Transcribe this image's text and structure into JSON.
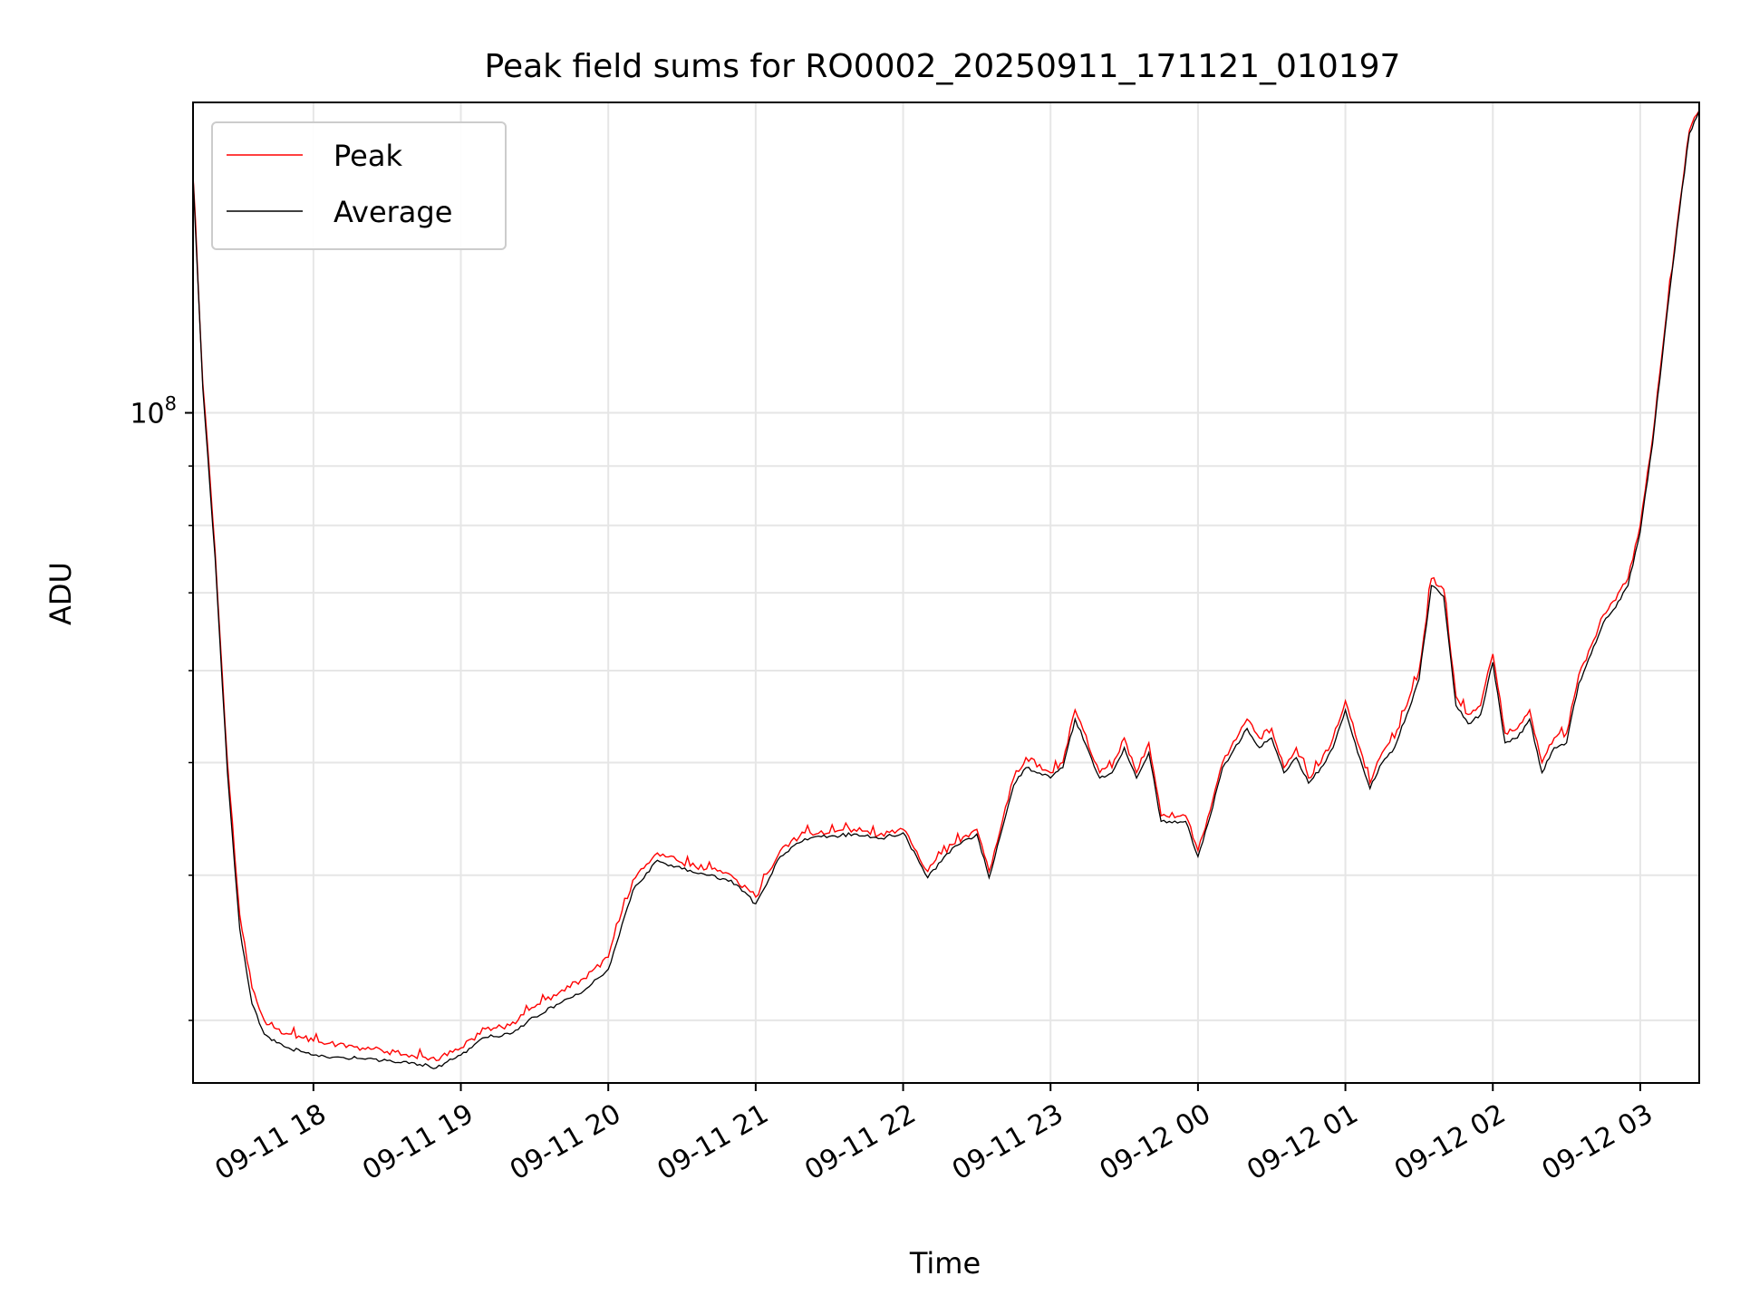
{
  "chart_data": {
    "type": "line",
    "title": "Peak field sums for RO0002_20250911_171121_010197",
    "xlabel": "Time",
    "ylabel": "ADU",
    "y_scale": "log",
    "ylim": [
      26500000,
      185000000
    ],
    "xlim": [
      "09-11 17:11",
      "09-12 03:24"
    ],
    "grid": true,
    "legend_position": "top-left",
    "x_ticks": [
      "09-11 18",
      "09-11 19",
      "09-11 20",
      "09-11 21",
      "09-11 22",
      "09-11 23",
      "09-12 00",
      "09-12 01",
      "09-12 02",
      "09-12 03"
    ],
    "y_ticks": [
      "10^8"
    ],
    "colors": {
      "peak": "#ff0000",
      "average": "#000000"
    },
    "series": [
      {
        "name": "Peak",
        "x": [
          "09-11 17:11",
          "09-11 17:15",
          "09-11 17:20",
          "09-11 17:25",
          "09-11 17:30",
          "09-11 17:35",
          "09-11 17:40",
          "09-11 17:45",
          "09-11 17:50",
          "09-11 17:55",
          "09-11 18:00",
          "09-11 18:10",
          "09-11 18:20",
          "09-11 18:30",
          "09-11 18:40",
          "09-11 18:50",
          "09-11 19:00",
          "09-11 19:10",
          "09-11 19:20",
          "09-11 19:30",
          "09-11 19:40",
          "09-11 19:50",
          "09-11 20:00",
          "09-11 20:10",
          "09-11 20:20",
          "09-11 20:30",
          "09-11 20:40",
          "09-11 20:50",
          "09-11 21:00",
          "09-11 21:10",
          "09-11 21:20",
          "09-11 21:30",
          "09-11 21:40",
          "09-11 21:50",
          "09-11 22:00",
          "09-11 22:10",
          "09-11 22:20",
          "09-11 22:30",
          "09-11 22:35",
          "09-11 22:45",
          "09-11 22:50",
          "09-11 23:00",
          "09-11 23:05",
          "09-11 23:10",
          "09-11 23:20",
          "09-11 23:25",
          "09-11 23:30",
          "09-11 23:35",
          "09-11 23:40",
          "09-11 23:45",
          "09-11 23:55",
          "09-12 00:00",
          "09-12 00:05",
          "09-12 00:10",
          "09-12 00:20",
          "09-12 00:25",
          "09-12 00:30",
          "09-12 00:35",
          "09-12 00:40",
          "09-12 00:45",
          "09-12 00:50",
          "09-12 00:55",
          "09-12 01:00",
          "09-12 01:05",
          "09-12 01:10",
          "09-12 01:15",
          "09-12 01:20",
          "09-12 01:25",
          "09-12 01:30",
          "09-12 01:35",
          "09-12 01:40",
          "09-12 01:45",
          "09-12 01:50",
          "09-12 01:55",
          "09-12 02:00",
          "09-12 02:05",
          "09-12 02:10",
          "09-12 02:15",
          "09-12 02:20",
          "09-12 02:25",
          "09-12 02:30",
          "09-12 02:35",
          "09-12 02:40",
          "09-12 02:45",
          "09-12 02:50",
          "09-12 02:55",
          "09-12 03:00",
          "09-12 03:05",
          "09-12 03:10",
          "09-12 03:15",
          "09-12 03:20",
          "09-12 03:24"
        ],
        "values": [
          160000000.0,
          106000000.0,
          76000000.0,
          50000000.0,
          37000000.0,
          32000000.0,
          30000000.0,
          29500000.0,
          29200000.0,
          29000000.0,
          28800000.0,
          28600000.0,
          28400000.0,
          28200000.0,
          28000000.0,
          27700000.0,
          28400000.0,
          29500000.0,
          29700000.0,
          30800000.0,
          31700000.0,
          32600000.0,
          34000000.0,
          39600000.0,
          41800000.0,
          41000000.0,
          40500000.0,
          40000000.0,
          38300000.0,
          42000000.0,
          43500000.0,
          43500000.0,
          43800000.0,
          43300000.0,
          43800000.0,
          40300000.0,
          42500000.0,
          43800000.0,
          40300000.0,
          48500000.0,
          50500000.0,
          49000000.0,
          50000000.0,
          55500000.0,
          49000000.0,
          49500000.0,
          52500000.0,
          49000000.0,
          52000000.0,
          45000000.0,
          45000000.0,
          42000000.0,
          45500000.0,
          50000000.0,
          54500000.0,
          52500000.0,
          53500000.0,
          49500000.0,
          51500000.0,
          48500000.0,
          50000000.0,
          52500000.0,
          56500000.0,
          52000000.0,
          48000000.0,
          51000000.0,
          52500000.0,
          56000000.0,
          60000000.0,
          72000000.0,
          70500000.0,
          57000000.0,
          55000000.0,
          56000000.0,
          62000000.0,
          53000000.0,
          53500000.0,
          55500000.0,
          50000000.0,
          52500000.0,
          53000000.0,
          59500000.0,
          63000000.0,
          67000000.0,
          69000000.0,
          72000000.0,
          80000000.0,
          95000000.0,
          118000000.0,
          145000000.0,
          175000000.0,
          182000000.0
        ]
      },
      {
        "name": "Average",
        "x": [
          "09-11 17:11",
          "09-11 17:15",
          "09-11 17:20",
          "09-11 17:25",
          "09-11 17:30",
          "09-11 17:35",
          "09-11 17:40",
          "09-11 17:45",
          "09-11 17:50",
          "09-11 17:55",
          "09-11 18:00",
          "09-11 18:10",
          "09-11 18:20",
          "09-11 18:30",
          "09-11 18:40",
          "09-11 18:50",
          "09-11 19:00",
          "09-11 19:10",
          "09-11 19:20",
          "09-11 19:30",
          "09-11 19:40",
          "09-11 19:50",
          "09-11 20:00",
          "09-11 20:10",
          "09-11 20:20",
          "09-11 20:30",
          "09-11 20:40",
          "09-11 20:50",
          "09-11 21:00",
          "09-11 21:10",
          "09-11 21:20",
          "09-11 21:30",
          "09-11 21:40",
          "09-11 21:50",
          "09-11 22:00",
          "09-11 22:10",
          "09-11 22:20",
          "09-11 22:30",
          "09-11 22:35",
          "09-11 22:45",
          "09-11 22:50",
          "09-11 23:00",
          "09-11 23:05",
          "09-11 23:10",
          "09-11 23:20",
          "09-11 23:25",
          "09-11 23:30",
          "09-11 23:35",
          "09-11 23:40",
          "09-11 23:45",
          "09-11 23:55",
          "09-12 00:00",
          "09-12 00:05",
          "09-12 00:10",
          "09-12 00:20",
          "09-12 00:25",
          "09-12 00:30",
          "09-12 00:35",
          "09-12 00:40",
          "09-12 00:45",
          "09-12 00:50",
          "09-12 00:55",
          "09-12 01:00",
          "09-12 01:05",
          "09-12 01:10",
          "09-12 01:15",
          "09-12 01:20",
          "09-12 01:25",
          "09-12 01:30",
          "09-12 01:35",
          "09-12 01:40",
          "09-12 01:45",
          "09-12 01:50",
          "09-12 01:55",
          "09-12 02:00",
          "09-12 02:05",
          "09-12 02:10",
          "09-12 02:15",
          "09-12 02:20",
          "09-12 02:25",
          "09-12 02:30",
          "09-12 02:35",
          "09-12 02:40",
          "09-12 02:45",
          "09-12 02:50",
          "09-12 02:55",
          "09-12 03:00",
          "09-12 03:05",
          "09-12 03:10",
          "09-12 03:15",
          "09-12 03:20",
          "09-12 03:24"
        ],
        "values": [
          160000000.0,
          105000000.0,
          75000000.0,
          49000000.0,
          36000000.0,
          31000000.0,
          29200000.0,
          28700000.0,
          28400000.0,
          28200000.0,
          28000000.0,
          27900000.0,
          27800000.0,
          27700000.0,
          27600000.0,
          27300000.0,
          28000000.0,
          29000000.0,
          29200000.0,
          30200000.0,
          31000000.0,
          31800000.0,
          33200000.0,
          38800000.0,
          41200000.0,
          40500000.0,
          40000000.0,
          39600000.0,
          37800000.0,
          41500000.0,
          43000000.0,
          43200000.0,
          43400000.0,
          43000000.0,
          43500000.0,
          39800000.0,
          42200000.0,
          43400000.0,
          39800000.0,
          47800000.0,
          49500000.0,
          48500000.0,
          49500000.0,
          54500000.0,
          48500000.0,
          49000000.0,
          51500000.0,
          48500000.0,
          51000000.0,
          44500000.0,
          44500000.0,
          41500000.0,
          45000000.0,
          49500000.0,
          53500000.0,
          51500000.0,
          52500000.0,
          49000000.0,
          50500000.0,
          48000000.0,
          49500000.0,
          51500000.0,
          55500000.0,
          51000000.0,
          47500000.0,
          50000000.0,
          51500000.0,
          55000000.0,
          59000000.0,
          71000000.0,
          69500000.0,
          56000000.0,
          54000000.0,
          55000000.0,
          61000000.0,
          52000000.0,
          52500000.0,
          54500000.0,
          49000000.0,
          51500000.0,
          52000000.0,
          58500000.0,
          62000000.0,
          66000000.0,
          68000000.0,
          71000000.0,
          79000000.0,
          94000000.0,
          117000000.0,
          144000000.0,
          174000000.0,
          182000000.0
        ]
      }
    ]
  }
}
